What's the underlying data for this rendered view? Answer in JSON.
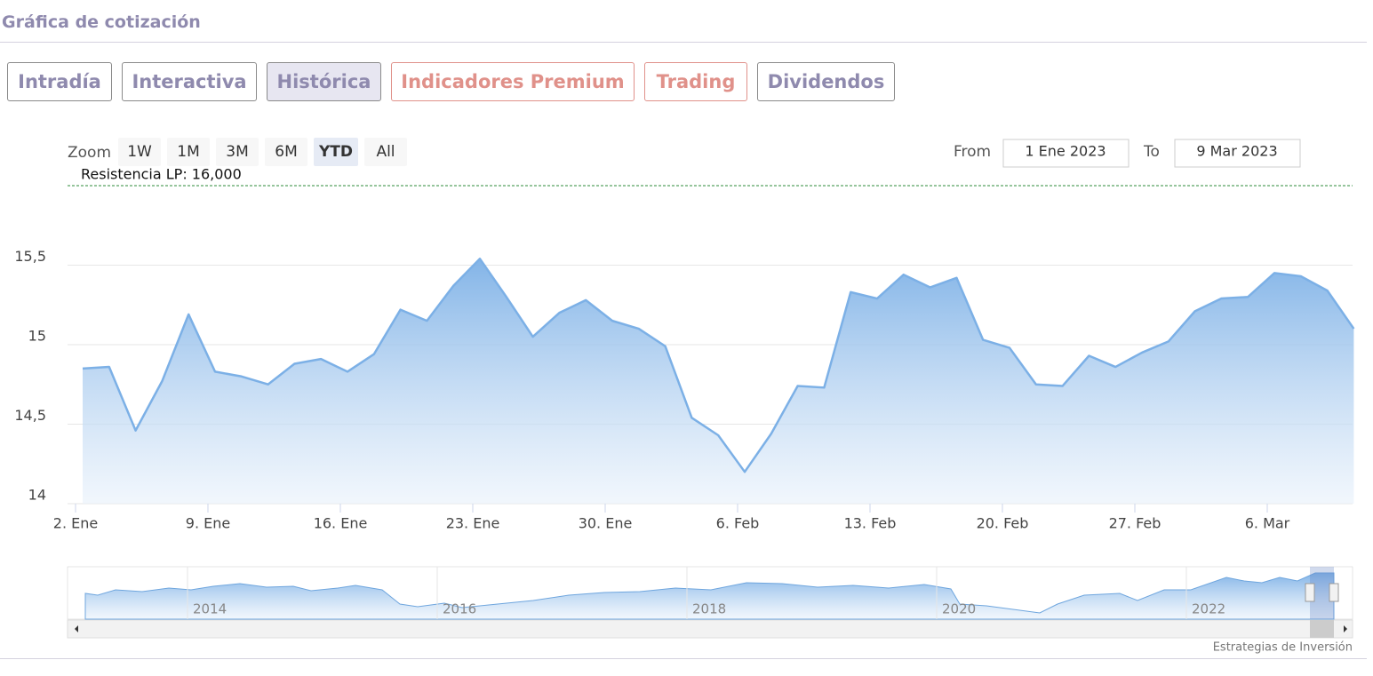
{
  "header": {
    "title": "Gráfica de cotización"
  },
  "tabs": [
    "Intradía",
    "Interactiva",
    "Histórica",
    "Indicadores Premium",
    "Trading",
    "Dividendos"
  ],
  "zoom": {
    "label": "Zoom",
    "buttons": [
      "1W",
      "1M",
      "3M",
      "6M",
      "YTD",
      "All"
    ],
    "active": "YTD"
  },
  "range": {
    "from_label": "From",
    "from": "1 Ene 2023",
    "to_label": "To",
    "to": "9 Mar 2023"
  },
  "navigator": {
    "years": [
      "2014",
      "2016",
      "2018",
      "2020",
      "2022"
    ]
  },
  "credits": "Estrategias de Inversión",
  "chart_data": {
    "type": "area",
    "categories": [
      "2. Ene",
      null,
      null,
      null,
      null,
      "9. Ene",
      null,
      null,
      null,
      null,
      "16. Ene",
      null,
      null,
      null,
      null,
      "23. Ene",
      null,
      null,
      null,
      null,
      "30. Ene",
      null,
      null,
      null,
      null,
      "6. Feb",
      null,
      null,
      null,
      null,
      "13. Feb",
      null,
      null,
      null,
      null,
      "20. Feb",
      null,
      null,
      null,
      null,
      "27. Feb",
      null,
      null,
      null,
      null,
      "6. Mar",
      null,
      null,
      null
    ],
    "values": [
      14.85,
      14.86,
      14.46,
      14.77,
      15.19,
      14.83,
      14.8,
      14.75,
      14.88,
      14.91,
      14.83,
      14.94,
      15.22,
      15.15,
      15.37,
      15.54,
      15.3,
      15.05,
      15.2,
      15.28,
      15.15,
      15.1,
      14.99,
      14.54,
      14.43,
      14.2,
      14.44,
      14.74,
      14.73,
      15.33,
      15.29,
      15.44,
      15.36,
      15.42,
      15.03,
      14.98,
      14.75,
      14.74,
      14.93,
      14.86,
      14.95,
      15.02,
      15.21,
      15.29,
      15.3,
      15.45,
      15.43,
      15.34,
      15.1
    ],
    "color": "#7cb0e6",
    "ylim": [
      14,
      16.05
    ],
    "yticks": [
      14,
      {
        "value": 14.5,
        "label": "14,5"
      },
      15,
      {
        "value": 15.5,
        "label": "15,5"
      }
    ],
    "grid": true,
    "plot_lines": [
      {
        "value": 16,
        "label": "Resistencia LP: 16,000",
        "color": "#2e8b3a"
      }
    ]
  }
}
